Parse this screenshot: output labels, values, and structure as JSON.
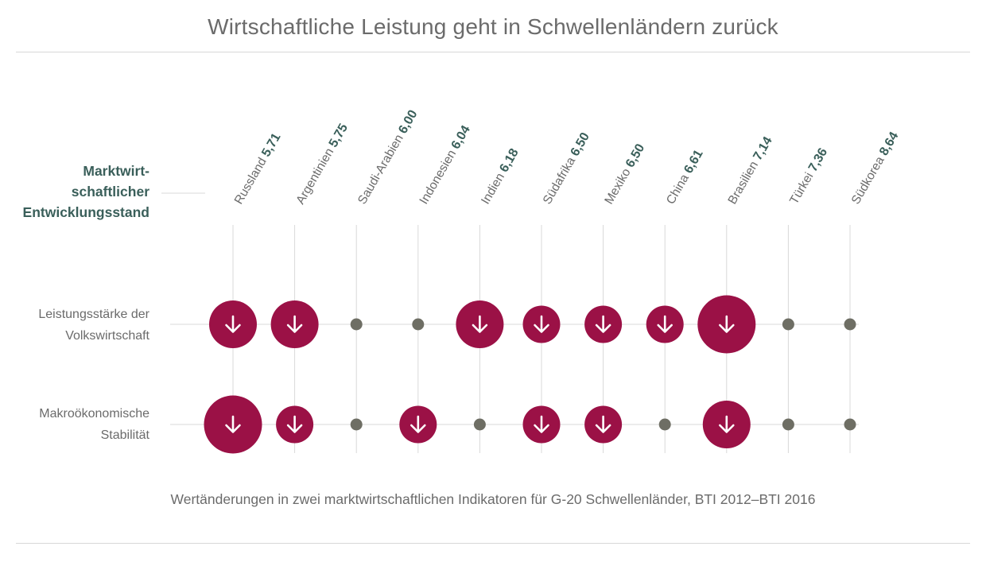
{
  "title": "Wirtschaftliche Leistung geht in Schwellenländern zurück",
  "subtitle": "Wertänderungen in zwei marktwirtschaftlichen Indikatoren für G-20 Schwellenländer, BTI 2012–BTI 2016",
  "y_header": [
    "Marktwirt-",
    "schaftlicher",
    "Entwicklungsstand"
  ],
  "rows": [
    {
      "label_lines": [
        "Leistungsstärke der",
        "Volkswirtschaft"
      ]
    },
    {
      "label_lines": [
        "Makroökonomische",
        "Stabilität"
      ]
    }
  ],
  "colors": {
    "decline": "#9b1146",
    "neutral": "#6e6e64",
    "grid": "#d9d9d9",
    "accent_text": "#3a5f5a",
    "text": "#6b6b6b"
  },
  "chart_data": {
    "type": "dot-matrix",
    "x_categories": [
      "Russland",
      "Argentinien",
      "Saudi-Arabien",
      "Indonesien",
      "Indien",
      "Südafrika",
      "Mexiko",
      "China",
      "Brasilien",
      "Türkei",
      "Südkorea"
    ],
    "x_values": [
      "5,71",
      "5,75",
      "6,00",
      "6,04",
      "6,18",
      "6,50",
      "6,50",
      "6,61",
      "7,14",
      "7,36",
      "8,64"
    ],
    "series": [
      {
        "name": "Leistungsstärke der Volkswirtschaft",
        "change": [
          "decline",
          "decline",
          "none",
          "none",
          "decline",
          "decline",
          "decline",
          "decline",
          "decline",
          "none",
          "none"
        ],
        "magnitude": [
          2,
          2,
          0,
          0,
          2,
          1,
          1,
          1,
          3,
          0,
          0
        ]
      },
      {
        "name": "Makroökonomische Stabilität",
        "change": [
          "decline",
          "decline",
          "none",
          "decline",
          "none",
          "decline",
          "decline",
          "none",
          "decline",
          "none",
          "none"
        ],
        "magnitude": [
          3,
          1,
          0,
          1,
          0,
          1,
          1,
          0,
          2,
          0,
          0
        ]
      }
    ]
  }
}
